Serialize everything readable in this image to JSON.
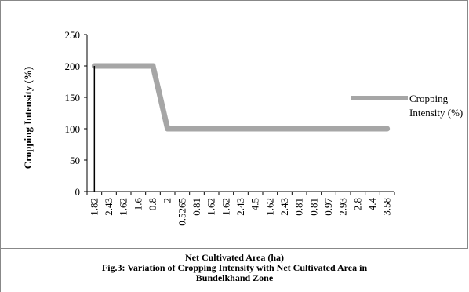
{
  "chart_data": {
    "type": "line",
    "title": "",
    "xlabel": "Net Cultivated Area (ha)",
    "ylabel": "Cropping Intensity (%)",
    "categories": [
      "1.82",
      "2.43",
      "1.62",
      "1.6",
      "0.8",
      "2",
      "0.5265",
      "0.81",
      "1.62",
      "1.62",
      "2.43",
      "4.5",
      "1.62",
      "2.43",
      "0.81",
      "0.81",
      "0.97",
      "2.93",
      "2.8",
      "4.4",
      "3.58"
    ],
    "series": [
      {
        "name": "Cropping Intensity (%)",
        "color": "#a6a6a6",
        "values": [
          200,
          200,
          200,
          200,
          200,
          100,
          100,
          100,
          100,
          100,
          100,
          100,
          100,
          100,
          100,
          100,
          100,
          100,
          100,
          100,
          100
        ]
      }
    ],
    "ylim": [
      0,
      250
    ],
    "yticks": [
      "0",
      "50",
      "100",
      "150",
      "200",
      "250"
    ],
    "grid": false,
    "legend": "right"
  },
  "caption": {
    "line1": "Fig.3: Variation of Cropping Intensity with Net Cultivated Area  in",
    "line2": "Bundelkhand Zone"
  }
}
